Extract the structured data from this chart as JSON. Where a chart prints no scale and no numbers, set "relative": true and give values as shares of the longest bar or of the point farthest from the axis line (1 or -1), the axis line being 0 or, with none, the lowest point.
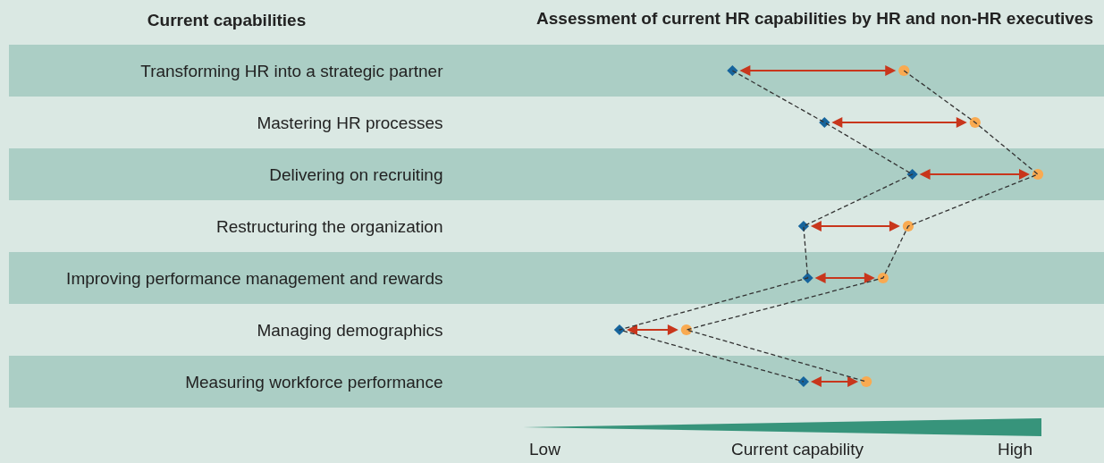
{
  "chart_data": {
    "type": "scatter",
    "title": "Assessment of current HR capabilities by HR and non-HR executives",
    "ylabel": "Current capabilities",
    "xlabel": "Current capability",
    "annotations": [
      "Low",
      "High"
    ],
    "categories": [
      "Transforming HR into a strategic partner",
      "Mastering HR processes",
      "Delivering on recruiting",
      "Restructuring the organization",
      "Improving performance management and rewards",
      "Managing demographics",
      "Measuring workforce performance"
    ],
    "series": [
      {
        "type": "line",
        "color": "#333333",
        "marker": "none",
        "line_style": "dashed",
        "values": [
          0.27,
          0.49,
          0.7,
          0.44,
          0.45,
          0,
          0.44
        ]
      },
      {
        "type": "line",
        "color": "#333333",
        "marker": "none",
        "line_style": "dashed",
        "values": [
          0.68,
          0.85,
          1,
          0.69,
          0.63,
          0.16,
          0.59
        ]
      },
      {
        "color": "#16649c",
        "marker": "diamond",
        "values": [
          0.27,
          0.49,
          0.7,
          0.44,
          0.45,
          0,
          0.44
        ]
      },
      {
        "color": "#f9aa51",
        "marker": "circle",
        "values": [
          0.68,
          0.85,
          1,
          0.69,
          0.63,
          0.16,
          0.59
        ]
      }
    ],
    "orientation": "horizontal",
    "relative": true,
    "grid": false
  }
}
